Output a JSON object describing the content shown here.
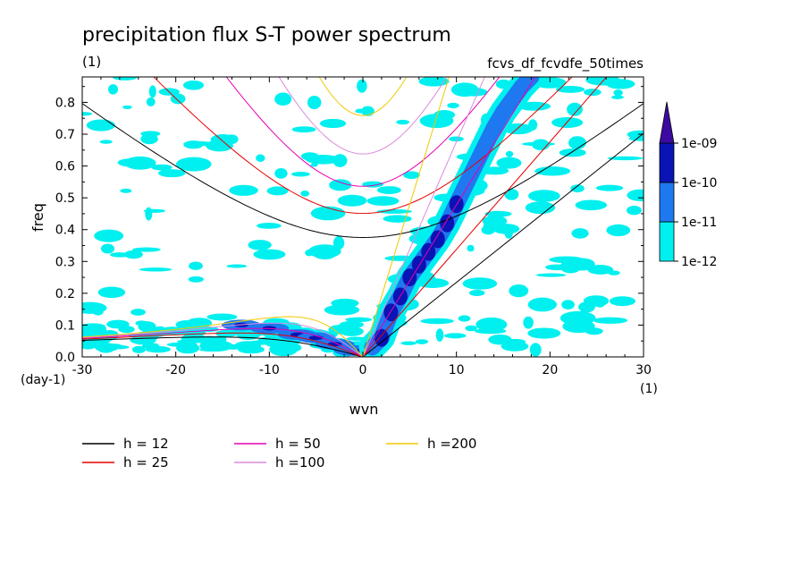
{
  "chart_data": {
    "type": "heatmap",
    "title": "precipitation flux S-T power spectrum",
    "units_label": "(1)",
    "run_label": "fcvs_df_fcvdfe_50times",
    "xlabel": "wvn",
    "ylabel": "freq",
    "x_unit": "(1)",
    "y_unit": "(day-1)",
    "xlim": [
      -30,
      30
    ],
    "ylim": [
      0,
      0.88
    ],
    "x_ticks": [
      -30,
      -20,
      -10,
      0,
      10,
      20,
      30
    ],
    "x_tick_labels": [
      "-30",
      "-20",
      "-10",
      "0",
      "10",
      "20",
      "30"
    ],
    "y_ticks": [
      0,
      0.1,
      0.2,
      0.3,
      0.4,
      0.5,
      0.6,
      0.7,
      0.8
    ],
    "y_tick_labels": [
      "0.0",
      "0.1",
      "0.2",
      "0.3",
      "0.4",
      "0.5",
      "0.6",
      "0.7",
      "0.8"
    ],
    "colorbar": {
      "levels": [
        "1e-12",
        "1e-11",
        "1e-10",
        "1e-09"
      ],
      "colors": [
        "#00f0f0",
        "#1e78f0",
        "#0a14b4",
        "#3c0aa0"
      ]
    },
    "legend": [
      {
        "label": "h = 12",
        "h": 12,
        "color": "#000000"
      },
      {
        "label": "h = 25",
        "h": 25,
        "color": "#e60000"
      },
      {
        "label": "h = 50",
        "h": 50,
        "color": "#e600b4"
      },
      {
        "label": "h =100",
        "h": 100,
        "color": "#dc8cdc"
      },
      {
        "label": "h =200",
        "h": 200,
        "color": "#f0c800"
      }
    ],
    "kelvin_ridge": [
      {
        "x": 1,
        "y": 0.03
      },
      {
        "x": 2,
        "y": 0.06
      },
      {
        "x": 3,
        "y": 0.14
      },
      {
        "x": 4,
        "y": 0.19
      },
      {
        "x": 5,
        "y": 0.25
      },
      {
        "x": 6,
        "y": 0.29
      },
      {
        "x": 7,
        "y": 0.33
      },
      {
        "x": 8,
        "y": 0.37
      },
      {
        "x": 9,
        "y": 0.42
      },
      {
        "x": 10,
        "y": 0.48
      },
      {
        "x": 11,
        "y": 0.54
      },
      {
        "x": 12,
        "y": 0.6
      },
      {
        "x": 13,
        "y": 0.66
      },
      {
        "x": 14,
        "y": 0.72
      },
      {
        "x": 15,
        "y": 0.77
      },
      {
        "x": 16,
        "y": 0.81
      },
      {
        "x": 17,
        "y": 0.85
      },
      {
        "x": 18,
        "y": 0.88
      }
    ],
    "low_freq_band": [
      {
        "x": -13,
        "y": 0.1
      },
      {
        "x": -10,
        "y": 0.09
      },
      {
        "x": -7,
        "y": 0.07
      },
      {
        "x": -5,
        "y": 0.06
      },
      {
        "x": -3,
        "y": 0.04
      },
      {
        "x": -1,
        "y": 0.02
      }
    ]
  }
}
